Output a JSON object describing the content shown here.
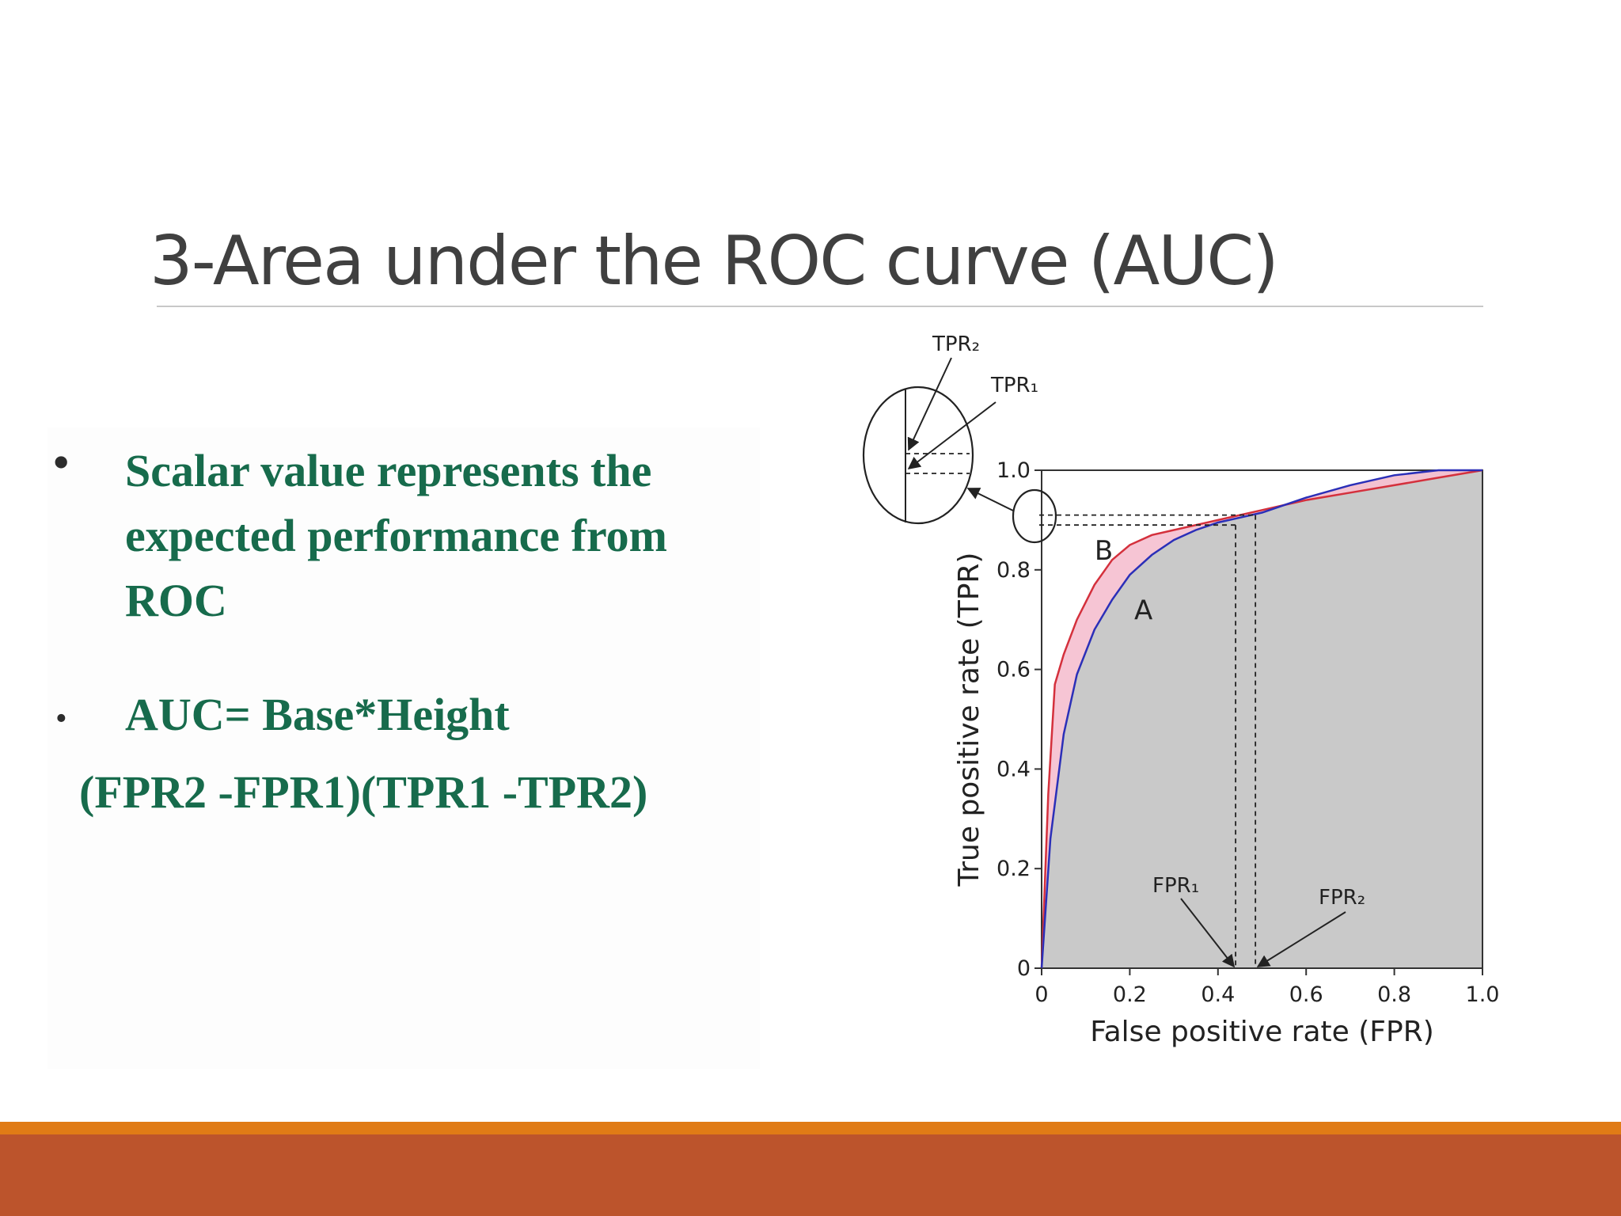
{
  "slide": {
    "title": "3-Area under the ROC curve (AUC)",
    "bullets": [
      {
        "dot": "•",
        "text": "Scalar value represents the expected performance from ROC"
      },
      {
        "dot": "•",
        "text": "AUC= Base*Height"
      }
    ],
    "formula": "(FPR2 -FPR1)(TPR1 -TPR2)",
    "colors": {
      "title": "#404040",
      "bullet_text": "#176b4c",
      "footer_stripe": "#e07b16",
      "footer_bar": "#bc542c"
    }
  },
  "chart_data": {
    "type": "line",
    "xlabel": "False positive rate (FPR)",
    "ylabel": "True positive rate (TPR)",
    "xlim": [
      0,
      1
    ],
    "ylim": [
      0,
      1
    ],
    "xticks": [
      "0",
      "0.2",
      "0.4",
      "0.6",
      "0.8",
      "1.0"
    ],
    "yticks": [
      "0",
      "0.2",
      "0.4",
      "0.6",
      "0.8",
      "1.0"
    ],
    "series": [
      {
        "name": "A",
        "color": "#2b2fb8",
        "x": [
          0,
          0.02,
          0.05,
          0.08,
          0.12,
          0.16,
          0.2,
          0.25,
          0.3,
          0.35,
          0.4,
          0.45,
          0.5,
          0.6,
          0.7,
          0.8,
          0.9,
          1.0
        ],
        "y": [
          0,
          0.26,
          0.47,
          0.59,
          0.68,
          0.74,
          0.79,
          0.83,
          0.86,
          0.88,
          0.895,
          0.905,
          0.915,
          0.945,
          0.97,
          0.99,
          1.0,
          1.0
        ]
      },
      {
        "name": "B",
        "color": "#d4303c",
        "x": [
          0,
          0.015,
          0.03,
          0.05,
          0.08,
          0.12,
          0.16,
          0.2,
          0.25,
          0.3,
          0.4,
          0.5,
          0.6,
          0.7,
          0.8,
          0.9,
          1.0
        ],
        "y": [
          0,
          0.35,
          0.57,
          0.63,
          0.7,
          0.77,
          0.82,
          0.85,
          0.87,
          0.88,
          0.9,
          0.92,
          0.94,
          0.955,
          0.97,
          0.985,
          1.0
        ]
      }
    ],
    "annotations": {
      "fpr1": {
        "label": "FPR₁",
        "x": 0.44
      },
      "fpr2": {
        "label": "FPR₂",
        "x": 0.485
      },
      "tpr1": {
        "label": "TPR₁",
        "y": 0.89
      },
      "tpr2": {
        "label": "TPR₂",
        "y": 0.91
      }
    },
    "fill_colors": {
      "area": "#c9c9c9",
      "between": "#f5c2d2"
    }
  }
}
